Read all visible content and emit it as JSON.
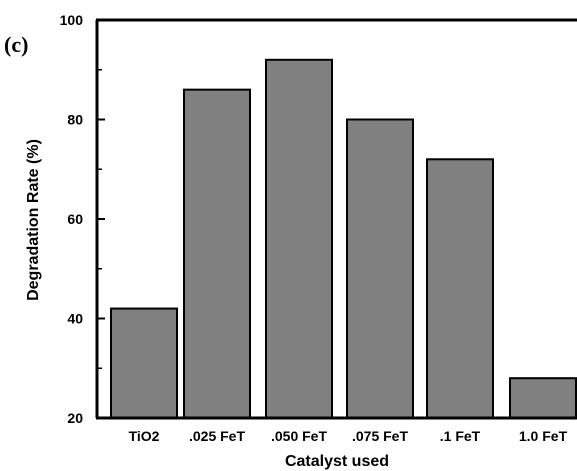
{
  "panel_label": "(c)",
  "chart_data": {
    "type": "bar",
    "categories": [
      "TiO2",
      ".025 FeT",
      ".050 FeT",
      ".075 FeT",
      ".1 FeT",
      "1.0 FeT"
    ],
    "values": [
      42,
      86,
      92,
      80,
      72,
      28
    ],
    "xlabel": "Catalyst used",
    "ylabel": "Degradation Rate (%)",
    "ylim": [
      20,
      100
    ],
    "yticks": [
      20,
      40,
      60,
      80,
      100
    ],
    "grid": false,
    "bar_color": "#808080"
  }
}
